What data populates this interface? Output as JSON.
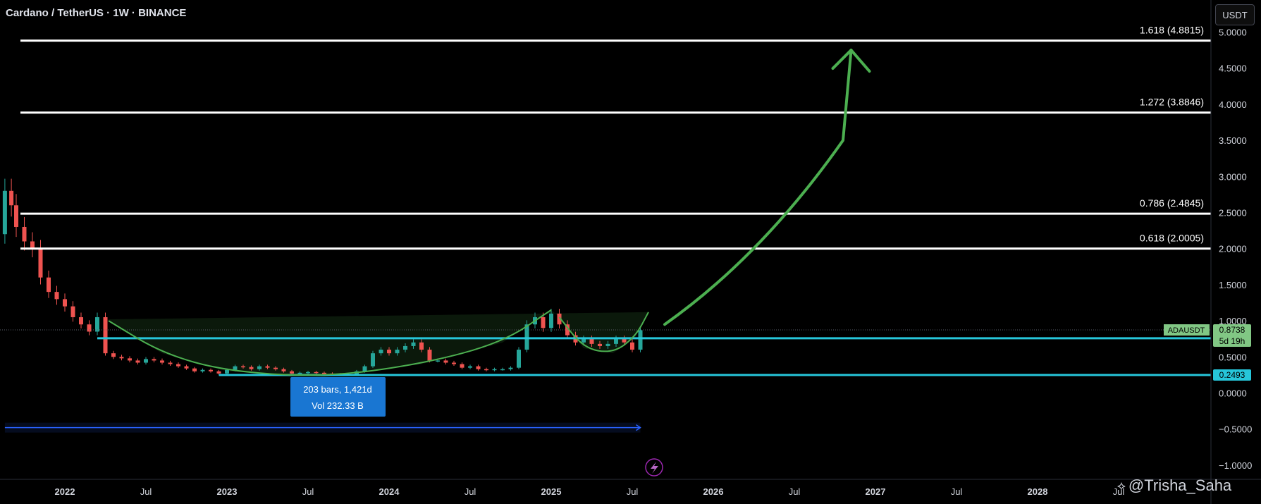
{
  "header": {
    "title": "Cardano / TetherUS · 1W · BINANCE",
    "unit_button": "USDT"
  },
  "watermark": {
    "text": "@Trisha_Saha"
  },
  "chart_data": {
    "type": "candlestick",
    "symbol": "ADAUSDT",
    "ylim": [
      -1.0,
      5.0
    ],
    "y_ticks": [
      "5.0000",
      "4.5000",
      "4.0000",
      "3.5000",
      "3.0000",
      "2.5000",
      "2.0000",
      "1.5000",
      "1.0000",
      "0.5000",
      "0.0000",
      "−0.5000",
      "−1.0000"
    ],
    "y_tick_values": [
      5.0,
      4.5,
      4.0,
      3.5,
      3.0,
      2.5,
      2.0,
      1.5,
      1.0,
      0.5,
      0.0,
      -0.5,
      -1.0
    ],
    "x_ticks": [
      {
        "label": "2022",
        "t": 2022.0,
        "bold": true
      },
      {
        "label": "Jul",
        "t": 2022.5,
        "bold": false
      },
      {
        "label": "2023",
        "t": 2023.0,
        "bold": true
      },
      {
        "label": "Jul",
        "t": 2023.5,
        "bold": false
      },
      {
        "label": "2024",
        "t": 2024.0,
        "bold": true
      },
      {
        "label": "Jul",
        "t": 2024.5,
        "bold": false
      },
      {
        "label": "2025",
        "t": 2025.0,
        "bold": true
      },
      {
        "label": "Jul",
        "t": 2025.5,
        "bold": false
      },
      {
        "label": "2026",
        "t": 2026.0,
        "bold": true
      },
      {
        "label": "Jul",
        "t": 2026.5,
        "bold": false
      },
      {
        "label": "2027",
        "t": 2027.0,
        "bold": true
      },
      {
        "label": "Jul",
        "t": 2027.5,
        "bold": false
      },
      {
        "label": "2028",
        "t": 2028.0,
        "bold": true
      },
      {
        "label": "Jul",
        "t": 2028.5,
        "bold": false
      }
    ],
    "fib_levels": [
      {
        "ratio": 1.618,
        "price": 4.8815,
        "label": "1.618 (4.8815)"
      },
      {
        "ratio": 1.272,
        "price": 3.8846,
        "label": "1.272 (3.8846)"
      },
      {
        "ratio": 0.786,
        "price": 2.4845,
        "label": "0.786 (2.4845)"
      },
      {
        "ratio": 0.618,
        "price": 2.0005,
        "label": "0.618 (2.0005)"
      }
    ],
    "support_lines": [
      {
        "price": 0.7576,
        "label": "0.7576",
        "t_start": 2022.2
      },
      {
        "price": 0.2493,
        "label": "0.2493",
        "t_start": 2022.95
      }
    ],
    "current_price": {
      "price": 0.8738,
      "label": "0.8738",
      "symbol_label": "ADAUSDT",
      "countdown": "5d 19h"
    },
    "measure_tool": {
      "line1": "203 bars, 1,421d",
      "line2": "Vol 232.33 B",
      "t_start": 2021.63,
      "t_end": 2025.55,
      "y": -0.48
    },
    "price_series": {
      "t": [
        2021.4,
        2021.5,
        2021.58,
        2021.63,
        2021.67,
        2021.7,
        2021.75,
        2021.8,
        2021.85,
        2021.9,
        2021.95,
        2022.0,
        2022.05,
        2022.1,
        2022.15,
        2022.2,
        2022.25,
        2022.3,
        2022.35,
        2022.4,
        2022.45,
        2022.5,
        2022.55,
        2022.6,
        2022.65,
        2022.7,
        2022.75,
        2022.8,
        2022.85,
        2022.9,
        2022.95,
        2023.0,
        2023.05,
        2023.1,
        2023.15,
        2023.2,
        2023.25,
        2023.3,
        2023.35,
        2023.4,
        2023.45,
        2023.5,
        2023.55,
        2023.6,
        2023.65,
        2023.7,
        2023.75,
        2023.8,
        2023.85,
        2023.9,
        2023.95,
        2024.0,
        2024.05,
        2024.1,
        2024.15,
        2024.2,
        2024.25,
        2024.3,
        2024.35,
        2024.4,
        2024.45,
        2024.5,
        2024.55,
        2024.6,
        2024.65,
        2024.7,
        2024.75,
        2024.8,
        2024.85,
        2024.9,
        2024.95,
        2025.0,
        2025.05,
        2025.1,
        2025.15,
        2025.2,
        2025.25,
        2025.3,
        2025.35,
        2025.4,
        2025.45,
        2025.5,
        2025.55
      ],
      "price": [
        1.2,
        1.4,
        2.2,
        2.8,
        2.6,
        2.3,
        2.1,
        2.0,
        1.6,
        1.4,
        1.3,
        1.2,
        1.05,
        0.95,
        0.85,
        1.05,
        0.55,
        0.5,
        0.48,
        0.45,
        0.42,
        0.47,
        0.45,
        0.42,
        0.4,
        0.37,
        0.34,
        0.3,
        0.32,
        0.3,
        0.27,
        0.32,
        0.37,
        0.36,
        0.33,
        0.37,
        0.35,
        0.33,
        0.3,
        0.27,
        0.28,
        0.29,
        0.28,
        0.27,
        0.26,
        0.25,
        0.25,
        0.3,
        0.37,
        0.55,
        0.6,
        0.55,
        0.6,
        0.65,
        0.7,
        0.6,
        0.45,
        0.45,
        0.42,
        0.4,
        0.35,
        0.37,
        0.33,
        0.32,
        0.33,
        0.33,
        0.35,
        0.6,
        0.95,
        1.05,
        0.9,
        1.1,
        0.95,
        0.8,
        0.7,
        0.75,
        0.68,
        0.65,
        0.68,
        0.75,
        0.7,
        0.6,
        0.87
      ]
    },
    "annotations": {
      "cup_arc": [
        [
          2022.27,
          1.0
        ],
        [
          2022.6,
          0.55
        ],
        [
          2023.0,
          0.3
        ],
        [
          2023.6,
          0.22
        ],
        [
          2024.2,
          0.4
        ],
        [
          2024.7,
          0.7
        ],
        [
          2025.0,
          1.15
        ]
      ],
      "handle_arc": [
        [
          2025.05,
          1.05
        ],
        [
          2025.2,
          0.62
        ],
        [
          2025.38,
          0.55
        ],
        [
          2025.52,
          0.78
        ],
        [
          2025.6,
          1.12
        ]
      ],
      "projection_arrow": [
        [
          2025.7,
          0.95
        ],
        [
          2026.3,
          1.9
        ],
        [
          2026.8,
          3.5
        ],
        [
          2026.85,
          4.75
        ]
      ]
    },
    "grid": false,
    "legend": "none"
  }
}
